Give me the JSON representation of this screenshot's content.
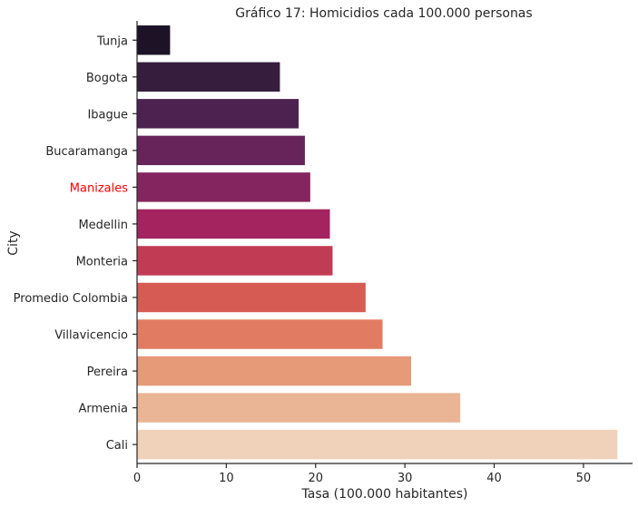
{
  "chart_data": {
    "type": "bar",
    "orientation": "horizontal",
    "title": "Gráfico 17: Homicidios cada 100.000 personas",
    "xlabel": "Tasa (100.000 habitantes)",
    "ylabel": "City",
    "xlim": [
      0,
      55.5
    ],
    "xticks": [
      "0",
      "10",
      "20",
      "30",
      "40",
      "50"
    ],
    "grid": false,
    "categories": [
      "Tunja",
      "Bogota",
      "Ibague",
      "Bucaramanga",
      "Manizales",
      "Medellin",
      "Monteria",
      "Promedio Colombia",
      "Villavicencio",
      "Pereira",
      "Armenia",
      "Cali"
    ],
    "values": [
      3.7,
      16.0,
      18.1,
      18.8,
      19.4,
      21.6,
      21.9,
      25.6,
      27.5,
      30.7,
      36.2,
      53.8
    ],
    "bar_colors": [
      "#1c1327",
      "#361d3d",
      "#4d2250",
      "#67245a",
      "#852560",
      "#a4245f",
      "#c23b54",
      "#d65c53",
      "#e17c62",
      "#e69a78",
      "#e9b595",
      "#f0d1ba"
    ],
    "highlight_category": "Manizales",
    "highlight_color": "#ff0000",
    "label_color": "#262626"
  }
}
